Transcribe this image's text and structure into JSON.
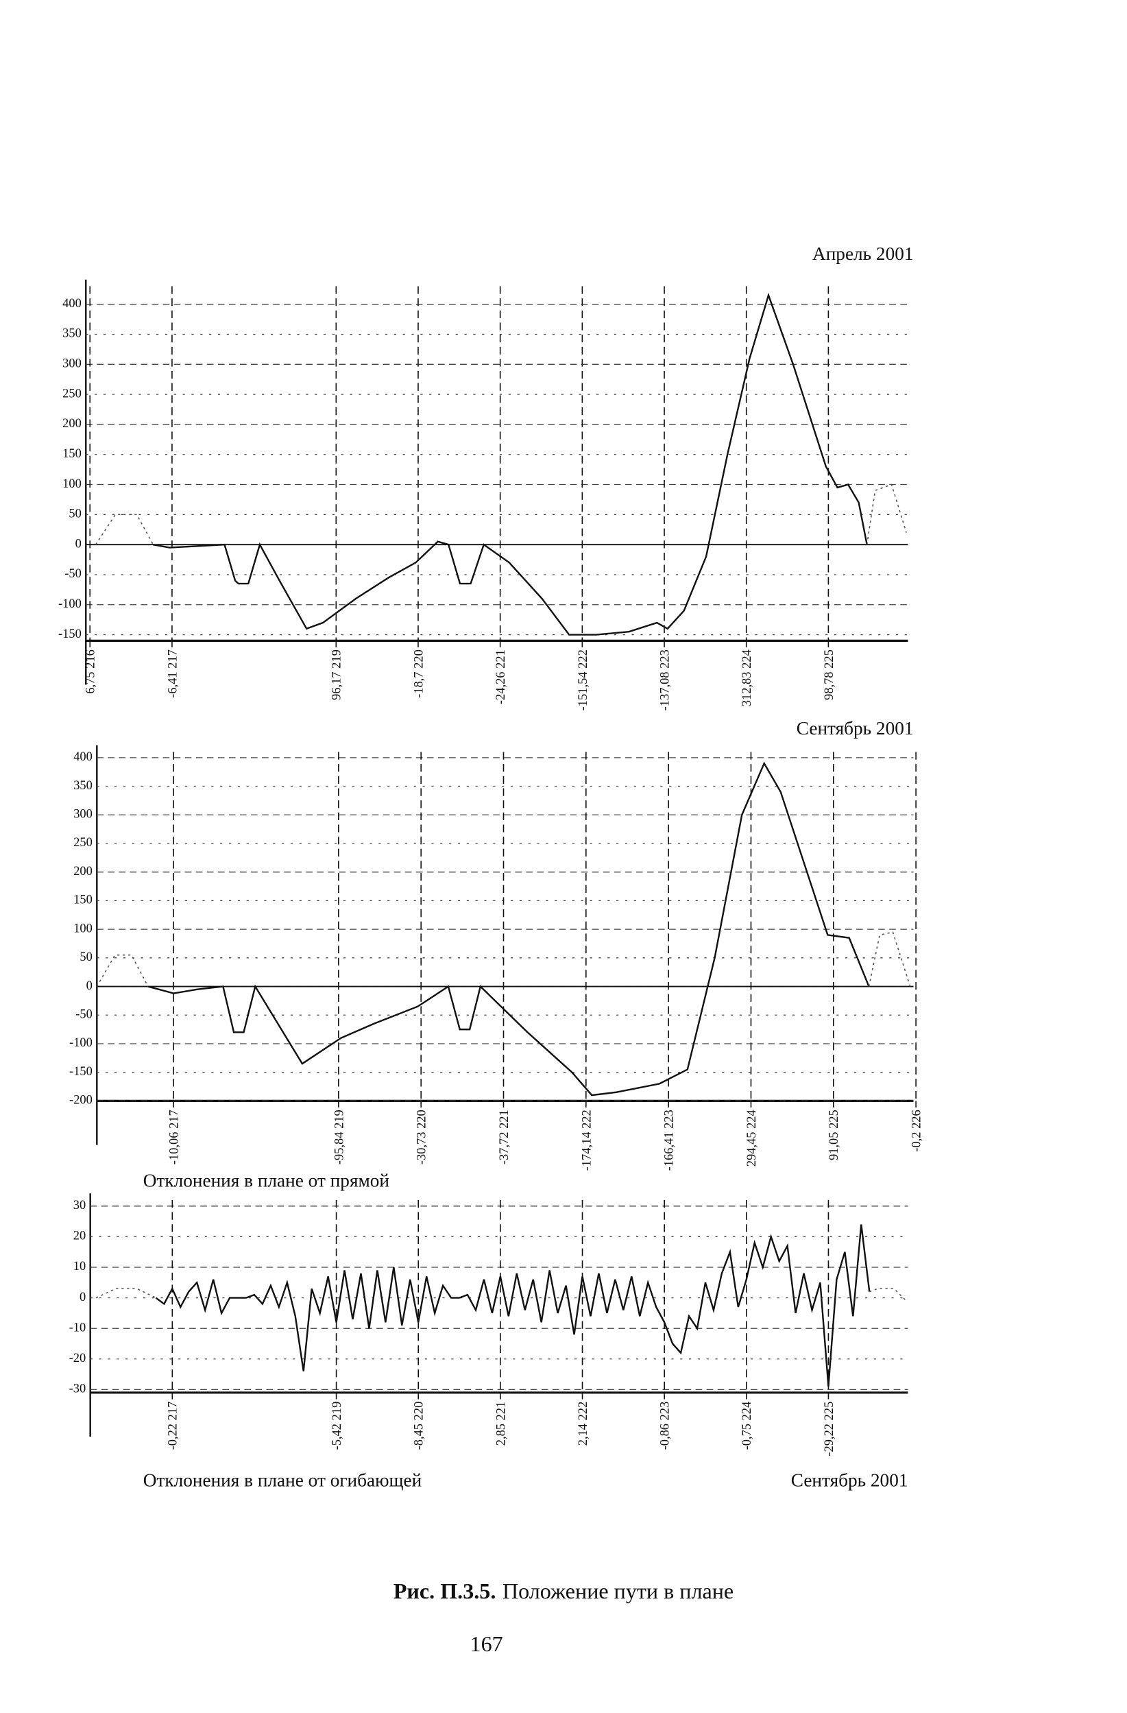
{
  "chart_data": [
    {
      "type": "line",
      "title": "Апрель 2001",
      "xlim": [
        215.95,
        225.97
      ],
      "ylim": [
        -160,
        430
      ],
      "xticks": [
        {
          "value": 216,
          "label": "6,75 216"
        },
        {
          "value": 217,
          "label": "-6,41 217"
        },
        {
          "value": 219,
          "label": "96,17 219"
        },
        {
          "value": 220,
          "label": "-18,7 220"
        },
        {
          "value": 221,
          "label": "-24,26 221"
        },
        {
          "value": 222,
          "label": "-151,54 222"
        },
        {
          "value": 223,
          "label": "-137,08 223"
        },
        {
          "value": 224,
          "label": "312,83 224"
        },
        {
          "value": 225,
          "label": "98,78 225"
        }
      ],
      "yticks": [
        400,
        350,
        300,
        250,
        200,
        150,
        100,
        50,
        0,
        -50,
        -100,
        -150
      ],
      "grid": true,
      "zero_line": true,
      "series": [
        {
          "color": "#111111",
          "style": "solid",
          "x": [
            216.77,
            216.97,
            217.24,
            217.64,
            217.77,
            217.81,
            217.93,
            218.07,
            218.31,
            218.64,
            218.84,
            219.24,
            219.64,
            219.97,
            220.24,
            220.37,
            220.51,
            220.64,
            220.8,
            221.11,
            221.51,
            221.84,
            222.17,
            222.57,
            222.91,
            223.04,
            223.24,
            223.51,
            223.77,
            224.04,
            224.27,
            224.57,
            224.97,
            225.11,
            225.24,
            225.37,
            225.47
          ],
          "values": [
            0,
            -5,
            -3,
            0,
            -60,
            -65,
            -65,
            0,
            -60,
            -140,
            -130,
            -90,
            -55,
            -30,
            5,
            0,
            -65,
            -65,
            0,
            -30,
            -90,
            -150,
            -150,
            -145,
            -130,
            -140,
            -110,
            -20,
            150,
            310,
            415,
            300,
            130,
            95,
            100,
            70,
            0
          ]
        },
        {
          "color": "#555555",
          "style": "dotted",
          "x": [
            216.07,
            216.31,
            216.57,
            216.77,
            null,
            225.47,
            225.57,
            225.77,
            225.95
          ],
          "values": [
            0,
            50,
            50,
            0,
            null,
            0,
            90,
            100,
            20
          ]
        }
      ]
    },
    {
      "type": "line",
      "title": "Сентябрь 2001",
      "xlabel": "Отклонения в плане от прямой",
      "xlim": [
        216.07,
        225.97
      ],
      "ylim": [
        -200,
        410
      ],
      "xticks": [
        {
          "value": 217,
          "label": "-10,06 217"
        },
        {
          "value": 219,
          "label": "-95,84 219"
        },
        {
          "value": 220,
          "label": "-30,73 220"
        },
        {
          "value": 221,
          "label": "-37,72 221"
        },
        {
          "value": 222,
          "label": "-174,14 222"
        },
        {
          "value": 223,
          "label": "-166,41 223"
        },
        {
          "value": 224,
          "label": "294,45 224"
        },
        {
          "value": 225,
          "label": "91,05 225"
        },
        {
          "value": 226,
          "label": "-0,2 226"
        }
      ],
      "yticks": [
        400,
        350,
        300,
        250,
        200,
        150,
        100,
        50,
        0,
        -50,
        -100,
        -150,
        -200
      ],
      "grid": true,
      "zero_line": true,
      "series": [
        {
          "color": "#111111",
          "style": "solid",
          "x": [
            216.69,
            217.0,
            217.29,
            217.6,
            217.73,
            217.85,
            217.99,
            218.56,
            219.03,
            219.43,
            219.96,
            220.33,
            220.47,
            220.59,
            220.72,
            221.29,
            221.83,
            222.07,
            222.36,
            222.89,
            223.23,
            223.56,
            223.89,
            224.16,
            224.36,
            224.93,
            225.19,
            225.43
          ],
          "values": [
            0,
            -12,
            -5,
            0,
            -80,
            -80,
            0,
            -135,
            -90,
            -65,
            -35,
            0,
            -75,
            -75,
            0,
            -80,
            -150,
            -190,
            -185,
            -170,
            -145,
            50,
            300,
            390,
            340,
            90,
            85,
            0
          ]
        },
        {
          "color": "#555555",
          "style": "dotted",
          "x": [
            216.07,
            216.29,
            216.49,
            216.69,
            null,
            225.43,
            225.56,
            225.72,
            225.93
          ],
          "values": [
            0,
            55,
            55,
            0,
            null,
            0,
            90,
            95,
            0
          ]
        }
      ]
    },
    {
      "type": "line",
      "title": "Сентябрь 2001",
      "xlabel": "Отклонения в плане от огибающей",
      "xlim": [
        216,
        225.97
      ],
      "ylim": [
        -31,
        32
      ],
      "xticks": [
        {
          "value": 217,
          "label": "-0,22 217"
        },
        {
          "value": 219,
          "label": "-5,42 219"
        },
        {
          "value": 220,
          "label": "-8,45 220"
        },
        {
          "value": 221,
          "label": "2,85 221"
        },
        {
          "value": 222,
          "label": "2,14 222"
        },
        {
          "value": 223,
          "label": "-0,86 223"
        },
        {
          "value": 224,
          "label": "-0,75 224"
        },
        {
          "value": 225,
          "label": "-29,22 225"
        }
      ],
      "yticks": [
        30,
        20,
        10,
        0,
        -10,
        -20,
        -30
      ],
      "grid": true,
      "zero_line": false,
      "series": [
        {
          "color": "#111111",
          "style": "solid",
          "x": [
            216.8,
            216.9,
            217.0,
            217.1,
            217.2,
            217.3,
            217.4,
            217.5,
            217.6,
            217.7,
            217.8,
            217.9,
            218.0,
            218.1,
            218.2,
            218.3,
            218.4,
            218.5,
            218.6,
            218.7,
            218.8,
            218.9,
            219.0,
            219.1,
            219.2,
            219.3,
            219.4,
            219.5,
            219.6,
            219.7,
            219.8,
            219.9,
            220.0,
            220.1,
            220.2,
            220.3,
            220.4,
            220.5,
            220.6,
            220.7,
            220.8,
            220.9,
            221.0,
            221.1,
            221.2,
            221.3,
            221.4,
            221.5,
            221.6,
            221.7,
            221.8,
            221.9,
            222.0,
            222.1,
            222.2,
            222.3,
            222.4,
            222.5,
            222.6,
            222.7,
            222.8,
            222.9,
            223.0,
            223.1,
            223.2,
            223.3,
            223.4,
            223.5,
            223.6,
            223.7,
            223.8,
            223.9,
            224.0,
            224.1,
            224.2,
            224.3,
            224.4,
            224.5,
            224.6,
            224.7,
            224.8,
            224.9,
            225.0,
            225.1,
            225.2,
            225.3,
            225.4,
            225.5
          ],
          "values": [
            0,
            -2,
            3,
            -3,
            2,
            5,
            -4,
            6,
            -5,
            0,
            0,
            0,
            1,
            -2,
            4,
            -3,
            5,
            -6,
            -24,
            3,
            -5,
            7,
            -8,
            9,
            -7,
            8,
            -10,
            9,
            -8,
            10,
            -9,
            6,
            -8,
            7,
            -5,
            4,
            0,
            0,
            1,
            -4,
            6,
            -5,
            7,
            -6,
            8,
            -4,
            6,
            -8,
            9,
            -5,
            4,
            -12,
            7,
            -6,
            8,
            -5,
            6,
            -4,
            7,
            -6,
            5,
            -3,
            -8,
            -15,
            -18,
            -6,
            -10,
            5,
            -4,
            8,
            15,
            -3,
            6,
            18,
            10,
            20,
            12,
            17,
            -5,
            8,
            -4,
            5,
            -29,
            6,
            15,
            -6,
            24,
            2
          ]
        },
        {
          "color": "#555555",
          "style": "dotted",
          "x": [
            216.07,
            216.31,
            216.57,
            216.8,
            null,
            225.5,
            225.6,
            225.8,
            225.95
          ],
          "values": [
            0,
            3,
            3,
            0,
            null,
            2,
            3,
            3,
            -1
          ]
        }
      ]
    }
  ],
  "caption": {
    "label": "Рис. П.3.5.",
    "text": "Положение пути в плане"
  },
  "page_number": "167"
}
